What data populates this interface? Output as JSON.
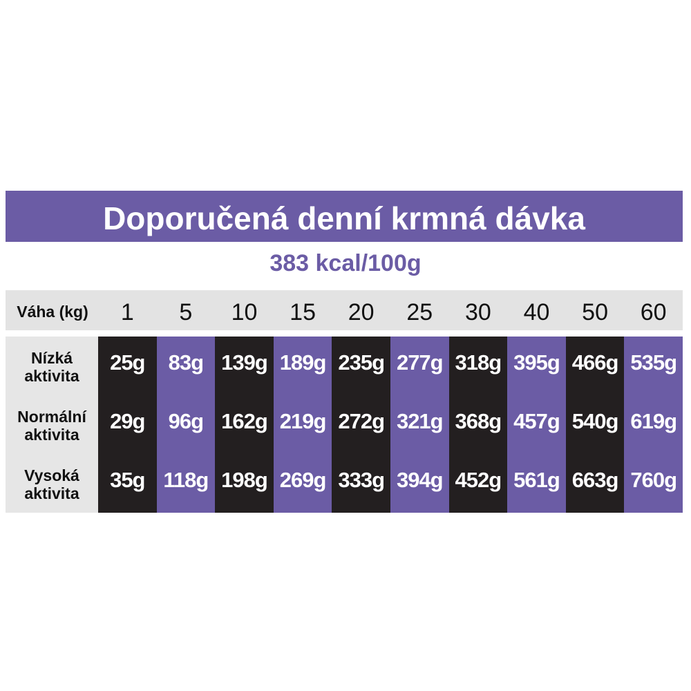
{
  "header": {
    "title": "Doporučená denní krmná dávka",
    "subtitle": "383 kcal/100g"
  },
  "table": {
    "weight_label": "Váha (kg)",
    "weights": [
      1,
      5,
      10,
      15,
      20,
      25,
      30,
      40,
      50,
      60
    ],
    "rows": [
      {
        "label": "Nízká aktivita",
        "values": [
          "25g",
          "83g",
          "139g",
          "189g",
          "235g",
          "277g",
          "318g",
          "395g",
          "466g",
          "535g"
        ]
      },
      {
        "label": "Normální aktivita",
        "values": [
          "29g",
          "96g",
          "162g",
          "219g",
          "272g",
          "321g",
          "368g",
          "457g",
          "540g",
          "619g"
        ]
      },
      {
        "label": "Vysoká aktivita",
        "values": [
          "35g",
          "118g",
          "198g",
          "269g",
          "333g",
          "394g",
          "452g",
          "561g",
          "663g",
          "760g"
        ]
      }
    ]
  }
}
